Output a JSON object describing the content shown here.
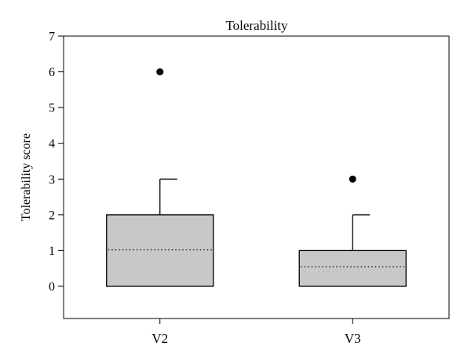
{
  "chart_data": {
    "type": "boxplot",
    "title": "Tolerability",
    "xlabel": "",
    "ylabel": "Tolerability score",
    "ylim": [
      -0.9,
      7
    ],
    "yticks": [
      0,
      1,
      2,
      3,
      4,
      5,
      6,
      7
    ],
    "grid": false,
    "categories": [
      "V2",
      "V3"
    ],
    "boxes": [
      {
        "category": "V2",
        "whisker_low": 0,
        "q1": 0,
        "mean": 1.02,
        "q3": 2,
        "whisker_high": 3,
        "outliers": [
          6
        ]
      },
      {
        "category": "V3",
        "whisker_low": 0,
        "q1": 0,
        "mean": 0.55,
        "q3": 1,
        "whisker_high": 2,
        "outliers": [
          3
        ]
      }
    ],
    "colors": {
      "box_fill": "#c8c8c8",
      "stroke": "#000000",
      "outlier": "#000000"
    }
  }
}
